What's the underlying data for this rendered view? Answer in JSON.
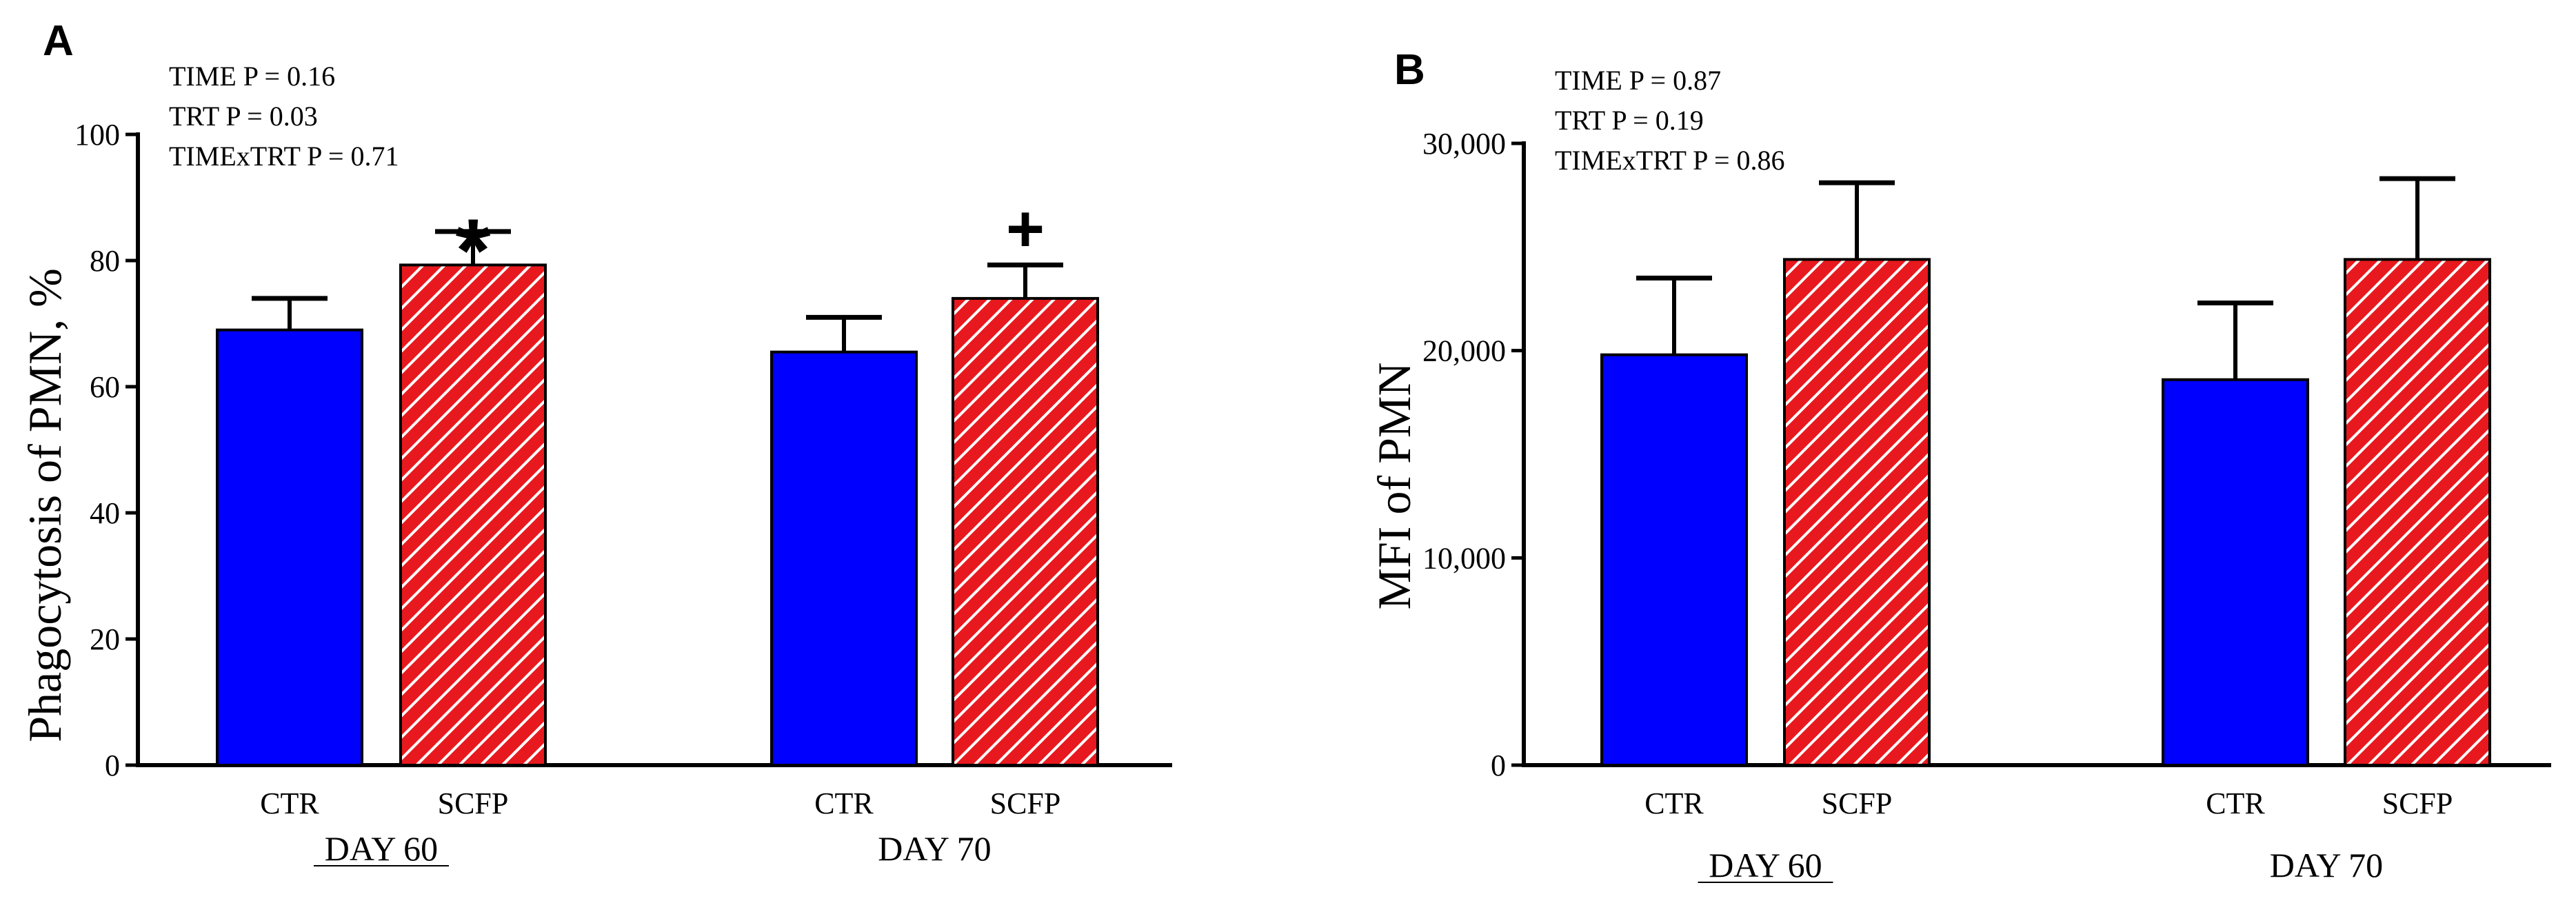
{
  "chart_data": [
    {
      "type": "bar",
      "panel_label": "A",
      "ylabel": "Phagocytosis of PMN, %",
      "ylim": [
        0,
        100
      ],
      "yticks": [
        0,
        20,
        40,
        60,
        80,
        100
      ],
      "ytick_labels": [
        "0",
        "20",
        "40",
        "60",
        "80",
        "100"
      ],
      "groups": [
        "DAY 60",
        "DAY 70"
      ],
      "categories": [
        "CTR",
        "SCFP"
      ],
      "stats": [
        "TIME P = 0.16",
        "TRT P = 0.03",
        "TIMExTRT P = 0.71"
      ],
      "series": [
        {
          "name": "CTR",
          "color": "#0000ff",
          "pattern": "solid",
          "values": [
            69,
            65.5
          ],
          "errors": [
            5,
            5.5
          ]
        },
        {
          "name": "SCFP",
          "color": "#e8191e",
          "pattern": "hatched",
          "values": [
            79.3,
            74
          ],
          "errors": [
            5.3,
            5.3
          ]
        }
      ],
      "annotations": [
        {
          "group": 0,
          "series": 1,
          "symbol": "*"
        },
        {
          "group": 1,
          "series": 1,
          "symbol": "+"
        }
      ]
    },
    {
      "type": "bar",
      "panel_label": "B",
      "ylabel": "MFI of PMN",
      "ylim": [
        0,
        30000
      ],
      "yticks": [
        0,
        10000,
        20000,
        30000
      ],
      "ytick_labels": [
        "0",
        "10,000",
        "20,000",
        "30,000"
      ],
      "groups": [
        "DAY 60",
        "DAY 70"
      ],
      "categories": [
        "CTR",
        "SCFP"
      ],
      "stats": [
        "TIME P = 0.87",
        "TRT P = 0.19",
        "TIMExTRT P = 0.86"
      ],
      "series": [
        {
          "name": "CTR",
          "color": "#0000ff",
          "pattern": "solid",
          "values": [
            19800,
            18600
          ],
          "errors": [
            3700,
            3700
          ]
        },
        {
          "name": "SCFP",
          "color": "#e8191e",
          "pattern": "hatched",
          "values": [
            24400,
            24400
          ],
          "errors": [
            3700,
            3900
          ]
        }
      ],
      "annotations": []
    }
  ]
}
